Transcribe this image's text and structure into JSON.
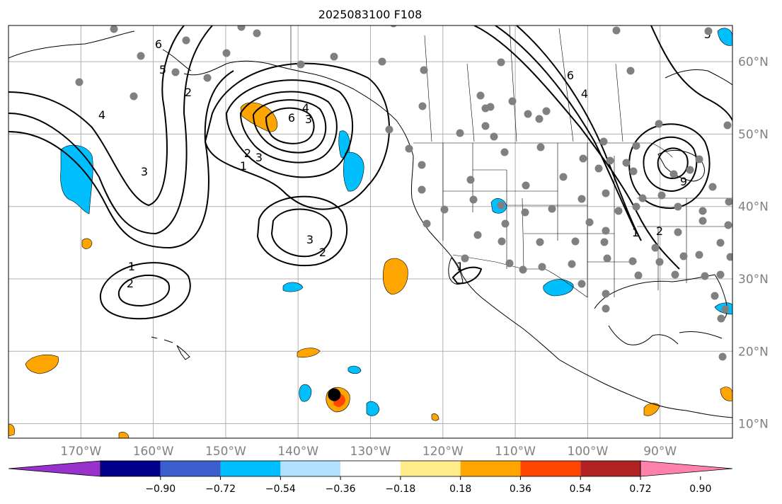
{
  "title": "2025083100 F108",
  "map": {
    "lon_range": [
      -180,
      -80
    ],
    "lat_range": [
      8,
      65
    ],
    "grid_lons": [
      -170,
      -160,
      -150,
      -140,
      -130,
      -120,
      -110,
      -100,
      -90
    ],
    "grid_lats": [
      10,
      20,
      30,
      40,
      50,
      60
    ],
    "lon_labels": [
      "170°W",
      "160°W",
      "150°W",
      "140°W",
      "130°W",
      "120°W",
      "110°W",
      "100°W",
      "90°W"
    ],
    "lat_labels": [
      "10°N",
      "20°N",
      "30°N",
      "40°N",
      "50°N",
      "60°N"
    ],
    "label_color": "#808080",
    "grid_color": "#b0b0b0"
  },
  "contour_labels": [
    "1",
    "2",
    "3",
    "4",
    "5",
    "6",
    "1",
    "2",
    "3",
    "4",
    "6",
    "1",
    "2",
    "3",
    "1",
    "2",
    "1",
    "2",
    "4",
    "6",
    "9"
  ],
  "marker": {
    "lon": -135,
    "lat": 14,
    "color": "#000000"
  },
  "colorbar": {
    "colors": [
      "#9932cc",
      "#00008b",
      "#3a5fcd",
      "#00bfff",
      "#b0e2ff",
      "#ffffff",
      "#ffec8b",
      "#ffa500",
      "#ff4500",
      "#b22222",
      "#ff82ab"
    ],
    "tick_labels": [
      "−0.90",
      "−0.72",
      "−0.54",
      "−0.36",
      "−0.18",
      "0.18",
      "0.36",
      "0.54",
      "0.72",
      "0.90"
    ]
  },
  "colors": {
    "station": "#808080",
    "contour": "#000000",
    "coast": "#000000"
  }
}
